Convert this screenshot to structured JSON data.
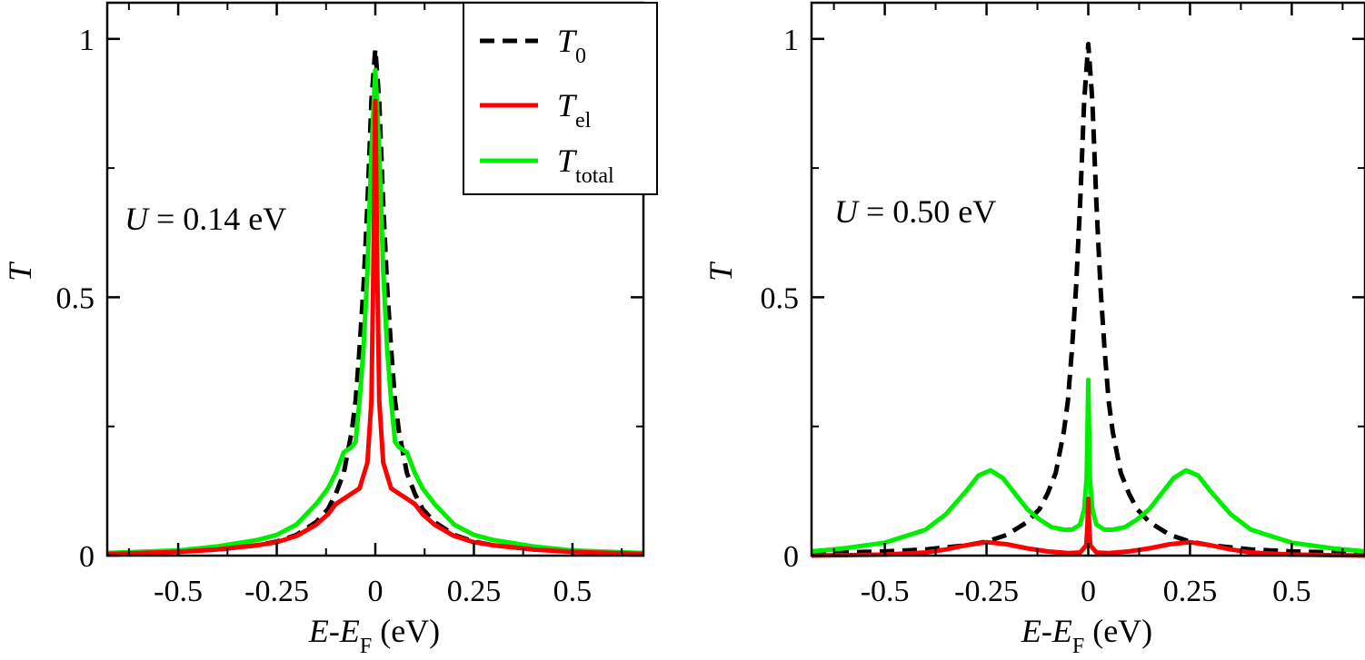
{
  "chart_data": [
    {
      "type": "line",
      "panel": "left",
      "annotation": {
        "var": "U",
        "text": " = 0.14 eV"
      },
      "xlabel": {
        "a": "E",
        "sep": "-",
        "b": "E",
        "b_sub": "F",
        "unit": " (eV)"
      },
      "ylabel": "T",
      "xlim": [
        -0.68,
        0.68
      ],
      "ylim": [
        0,
        1.07
      ],
      "xticks": [
        -0.5,
        -0.25,
        0,
        0.25,
        0.5
      ],
      "xtick_labels": [
        "-0.5",
        "-0.25",
        "0",
        "0.25",
        "0.5"
      ],
      "yticks": [
        0,
        0.5,
        1
      ],
      "ytick_labels": [
        "0",
        "0.5",
        "1"
      ],
      "legend": {
        "position": "top-right",
        "entries": [
          {
            "main": "T",
            "sub": "0",
            "color": "#000000",
            "dash": true
          },
          {
            "main": "T",
            "sub": "el",
            "color": "#ff0000",
            "dash": false
          },
          {
            "main": "T",
            "sub": "total",
            "color": "#00ee00",
            "dash": false
          }
        ]
      },
      "series": [
        {
          "name": "T0",
          "color": "#000000",
          "dash": true,
          "x": [
            -0.68,
            -0.5,
            -0.4,
            -0.3,
            -0.25,
            -0.2,
            -0.15,
            -0.12,
            -0.1,
            -0.08,
            -0.06,
            -0.05,
            -0.04,
            -0.03,
            -0.02,
            -0.01,
            0,
            0.01,
            0.02,
            0.03,
            0.04,
            0.05,
            0.06,
            0.08,
            0.1,
            0.12,
            0.15,
            0.2,
            0.25,
            0.3,
            0.4,
            0.5,
            0.68
          ],
          "y": [
            0.005,
            0.008,
            0.012,
            0.02,
            0.027,
            0.04,
            0.065,
            0.09,
            0.12,
            0.16,
            0.24,
            0.3,
            0.4,
            0.52,
            0.68,
            0.88,
            0.98,
            0.88,
            0.68,
            0.52,
            0.4,
            0.3,
            0.24,
            0.16,
            0.12,
            0.09,
            0.065,
            0.04,
            0.027,
            0.02,
            0.012,
            0.008,
            0.005
          ]
        },
        {
          "name": "Ttotal",
          "color": "#00ee00",
          "dash": false,
          "x": [
            -0.68,
            -0.5,
            -0.4,
            -0.3,
            -0.25,
            -0.2,
            -0.15,
            -0.12,
            -0.1,
            -0.08,
            -0.06,
            -0.05,
            -0.04,
            -0.03,
            -0.02,
            -0.01,
            0,
            0.01,
            0.02,
            0.03,
            0.04,
            0.05,
            0.06,
            0.08,
            0.1,
            0.12,
            0.15,
            0.2,
            0.25,
            0.3,
            0.4,
            0.5,
            0.68
          ],
          "y": [
            0.005,
            0.01,
            0.018,
            0.03,
            0.04,
            0.06,
            0.1,
            0.13,
            0.16,
            0.2,
            0.21,
            0.22,
            0.3,
            0.4,
            0.55,
            0.78,
            0.94,
            0.78,
            0.55,
            0.4,
            0.3,
            0.22,
            0.21,
            0.2,
            0.16,
            0.13,
            0.1,
            0.06,
            0.04,
            0.03,
            0.018,
            0.01,
            0.005
          ]
        },
        {
          "name": "Tel",
          "color": "#ff0000",
          "dash": false,
          "x": [
            -0.68,
            -0.5,
            -0.4,
            -0.3,
            -0.25,
            -0.2,
            -0.15,
            -0.12,
            -0.1,
            -0.08,
            -0.06,
            -0.04,
            -0.02,
            -0.01,
            -0.005,
            0,
            0.005,
            0.01,
            0.02,
            0.04,
            0.06,
            0.08,
            0.1,
            0.12,
            0.15,
            0.2,
            0.25,
            0.3,
            0.4,
            0.5,
            0.68
          ],
          "y": [
            0.003,
            0.007,
            0.012,
            0.02,
            0.026,
            0.038,
            0.06,
            0.08,
            0.1,
            0.11,
            0.12,
            0.13,
            0.18,
            0.3,
            0.55,
            0.88,
            0.55,
            0.3,
            0.18,
            0.13,
            0.12,
            0.11,
            0.1,
            0.08,
            0.06,
            0.038,
            0.026,
            0.02,
            0.012,
            0.007,
            0.003
          ]
        }
      ]
    },
    {
      "type": "line",
      "panel": "right",
      "annotation": {
        "var": "U",
        "text": " = 0.50 eV"
      },
      "xlabel": {
        "a": "E",
        "sep": "-",
        "b": "E",
        "b_sub": "F",
        "unit": " (eV)"
      },
      "ylabel": "T",
      "xlim": [
        -0.68,
        0.68
      ],
      "ylim": [
        0,
        1.07
      ],
      "xticks": [
        -0.5,
        -0.25,
        0,
        0.25,
        0.5
      ],
      "xtick_labels": [
        "-0.5",
        "-0.25",
        "0",
        "0.25",
        "0.5"
      ],
      "yticks": [
        0,
        0.5,
        1
      ],
      "ytick_labels": [
        "0",
        "0.5",
        "1"
      ],
      "series": [
        {
          "name": "T0",
          "color": "#000000",
          "dash": true,
          "x": [
            -0.68,
            -0.5,
            -0.4,
            -0.3,
            -0.25,
            -0.2,
            -0.15,
            -0.12,
            -0.1,
            -0.08,
            -0.06,
            -0.05,
            -0.04,
            -0.03,
            -0.02,
            -0.01,
            0,
            0.01,
            0.02,
            0.03,
            0.04,
            0.05,
            0.06,
            0.08,
            0.1,
            0.12,
            0.15,
            0.2,
            0.25,
            0.3,
            0.4,
            0.5,
            0.68
          ],
          "y": [
            0.005,
            0.008,
            0.012,
            0.02,
            0.027,
            0.04,
            0.065,
            0.09,
            0.12,
            0.16,
            0.24,
            0.3,
            0.4,
            0.52,
            0.68,
            0.88,
            0.99,
            0.88,
            0.68,
            0.52,
            0.4,
            0.3,
            0.24,
            0.16,
            0.12,
            0.09,
            0.065,
            0.04,
            0.027,
            0.02,
            0.012,
            0.008,
            0.005
          ]
        },
        {
          "name": "Ttotal",
          "color": "#00ee00",
          "dash": false,
          "x": [
            -0.68,
            -0.6,
            -0.5,
            -0.4,
            -0.35,
            -0.3,
            -0.27,
            -0.24,
            -0.21,
            -0.18,
            -0.15,
            -0.12,
            -0.09,
            -0.06,
            -0.04,
            -0.02,
            -0.01,
            -0.004,
            -0.002,
            0,
            0.002,
            0.004,
            0.01,
            0.02,
            0.04,
            0.06,
            0.09,
            0.12,
            0.15,
            0.18,
            0.21,
            0.24,
            0.27,
            0.3,
            0.35,
            0.4,
            0.5,
            0.6,
            0.68
          ],
          "y": [
            0.008,
            0.014,
            0.025,
            0.05,
            0.08,
            0.125,
            0.155,
            0.165,
            0.15,
            0.12,
            0.09,
            0.07,
            0.055,
            0.05,
            0.05,
            0.06,
            0.09,
            0.15,
            0.24,
            0.34,
            0.24,
            0.15,
            0.09,
            0.06,
            0.05,
            0.05,
            0.055,
            0.07,
            0.09,
            0.12,
            0.15,
            0.165,
            0.155,
            0.125,
            0.08,
            0.05,
            0.025,
            0.014,
            0.008
          ]
        },
        {
          "name": "Tel",
          "color": "#ff0000",
          "dash": false,
          "x": [
            -0.68,
            -0.5,
            -0.4,
            -0.35,
            -0.3,
            -0.25,
            -0.2,
            -0.15,
            -0.1,
            -0.05,
            -0.02,
            -0.005,
            -0.002,
            0,
            0.002,
            0.005,
            0.02,
            0.05,
            0.1,
            0.15,
            0.2,
            0.25,
            0.3,
            0.35,
            0.4,
            0.5,
            0.68
          ],
          "y": [
            0,
            0.002,
            0.006,
            0.012,
            0.02,
            0.026,
            0.022,
            0.014,
            0.008,
            0.005,
            0.006,
            0.02,
            0.06,
            0.11,
            0.06,
            0.02,
            0.006,
            0.005,
            0.008,
            0.014,
            0.022,
            0.026,
            0.02,
            0.012,
            0.006,
            0.002,
            0
          ]
        }
      ]
    }
  ]
}
